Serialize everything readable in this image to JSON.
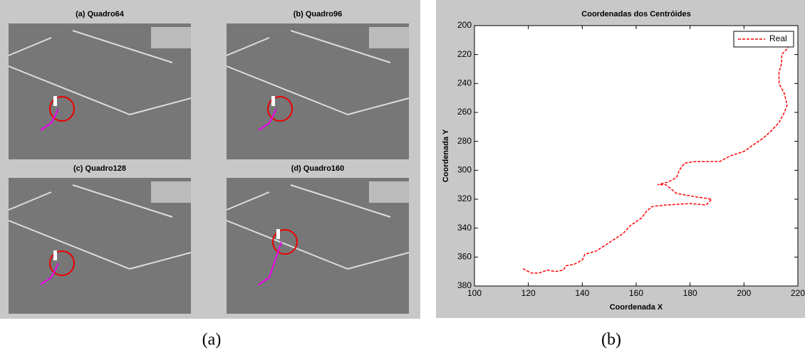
{
  "panel_a": {
    "frames": [
      "(a) Quadro64",
      "(b) Quadro96",
      "(c) Quadro128",
      "(d) Quadro160"
    ],
    "caption": "(a)"
  },
  "panel_b": {
    "caption": "(b)"
  },
  "chart_data": {
    "type": "line",
    "title": "Coordenadas dos Centróides",
    "x_label": "Coordenada X",
    "y_label": "Coordenada Y",
    "xlim": [
      100,
      220
    ],
    "xticks": [
      100,
      120,
      140,
      160,
      180,
      200,
      220
    ],
    "ylim": [
      200,
      380
    ],
    "yticks": [
      200,
      220,
      240,
      260,
      280,
      300,
      320,
      340,
      360,
      380
    ],
    "y_inverted": true,
    "grid": false,
    "legend": "upper right",
    "x": [
      118,
      121,
      124,
      127,
      130,
      133,
      134,
      137,
      140,
      141,
      145,
      150,
      155,
      158,
      162,
      164,
      166,
      171,
      180,
      186,
      188,
      181,
      175,
      173,
      171,
      168,
      172,
      175,
      176,
      178,
      182,
      191,
      195,
      200,
      203,
      207,
      210,
      213,
      215,
      216,
      215,
      213,
      213,
      214,
      214,
      216,
      217
    ],
    "series": [
      {
        "name": "Real",
        "color": "#ff0000",
        "dash": true,
        "values": [
          368,
          371,
          371,
          369,
          370,
          369,
          366,
          365,
          362,
          358,
          356,
          350,
          344,
          338,
          333,
          328,
          325,
          324,
          323,
          324,
          320,
          318,
          316,
          313,
          310,
          310,
          308,
          305,
          300,
          295,
          294,
          294,
          290,
          287,
          283,
          278,
          273,
          267,
          260,
          255,
          247,
          240,
          232,
          226,
          220,
          216,
          213
        ]
      }
    ]
  }
}
